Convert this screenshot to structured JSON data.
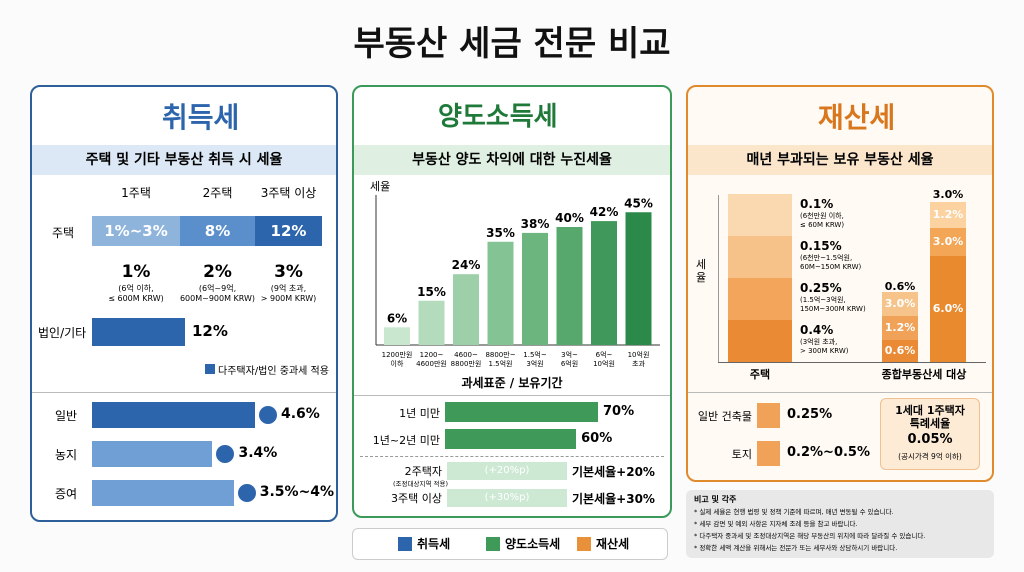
{
  "title": "부동산 세금 전문 비교",
  "acquisition": {
    "title": "취득세",
    "subtitle": "주택 및 기타 부동산 취득 시 세율",
    "color": "#2d65ad",
    "columns": [
      "1주택",
      "2주택",
      "3주택 이상"
    ],
    "housing": {
      "label": "주택",
      "cells": [
        "1%~3%",
        "8%",
        "12%"
      ],
      "colors": [
        "#8fb4dc",
        "#5b8fcc",
        "#2d65ad"
      ]
    },
    "details": [
      {
        "rate": "1%",
        "note": "(6억 이하,\n≤ 600M KRW)"
      },
      {
        "rate": "2%",
        "note": "(6억~9억,\n600M~900M KRW)"
      },
      {
        "rate": "3%",
        "note": "(9억 초과,\n> 900M KRW)"
      }
    ],
    "corporate": {
      "label": "법인/기타",
      "value": 12,
      "value_label": "12%"
    },
    "legend": "다주택자/법인 중과세 적용",
    "others": [
      {
        "label": "일반",
        "values": [
          4.6
        ],
        "value_label": "4.6%"
      },
      {
        "label": "농지",
        "values": [
          3.4
        ],
        "value_label": "3.4%"
      },
      {
        "label": "증여",
        "values": [
          3.5,
          4
        ],
        "value_label": "3.5%~4%"
      }
    ]
  },
  "capital_gains": {
    "title": "양도소득세",
    "subtitle": "부동산 양도 차익에 대한 누진세율",
    "y_label": "세율",
    "x_label": "과세표준 / 보유기간",
    "categories": [
      "1200만원\n이하",
      "1200~\n4600만원",
      "4600~\n8800만원",
      "8800만~\n1.5억원",
      "1.5억~\n3억원",
      "3억~\n6억원",
      "6억~\n10억원",
      "10억원\n초과"
    ],
    "values": [
      6,
      15,
      24,
      35,
      38,
      40,
      42,
      45
    ],
    "value_labels": [
      "6%",
      "15%",
      "24%",
      "35%",
      "38%",
      "40%",
      "42%",
      "45%"
    ],
    "colors": [
      "#c9e6cf",
      "#b4dcbc",
      "#9dd0a8",
      "#84c393",
      "#6db57f",
      "#56a86c",
      "#40995a",
      "#2b8a49"
    ],
    "holding": [
      {
        "label": "1년 미만",
        "value": 70,
        "value_label": "70%"
      },
      {
        "label": "1년~2년 미만",
        "value": 60,
        "value_label": "60%"
      }
    ],
    "holding_color": "#3f9a5a",
    "surcharge": [
      {
        "label": "2주택자",
        "note": "(조정대상지역 적용)",
        "badge": "(+20%p)",
        "rate": "기본세율+20%"
      },
      {
        "label": "3주택 이상",
        "badge": "(+30%p)",
        "rate": "기본세율+30%"
      }
    ]
  },
  "property": {
    "title": "재산세",
    "subtitle": "매년 부과되는 보유 부동산 세율",
    "y_label": "세율",
    "housing_tiers": [
      {
        "rate": "0.1%",
        "note": "(6천만원 이하,\n≤ 60M KRW)"
      },
      {
        "rate": "0.15%",
        "note": "(6천만~1.5억원,\n60M~150M KRW)"
      },
      {
        "rate": "0.25%",
        "note": "(1.5억~3억원,\n150M~300M KRW)"
      },
      {
        "rate": "0.4%",
        "note": "(3억원 초과,\n> 300M KRW)"
      }
    ],
    "tier_colors": [
      "#fbd9b0",
      "#f7c28a",
      "#f2a55b",
      "#eb8a35"
    ],
    "housing_label": "주택",
    "comprehensive_label": "종합부동산세 대상",
    "comprehensive_stacks": [
      {
        "top": "0.6%",
        "segments": [
          "3.0%",
          "1.2%",
          "0.6%"
        ],
        "colors": [
          "#f6c48a",
          "#f0a258",
          "#eb8a35"
        ]
      },
      {
        "top": "3.0%",
        "segments": [
          "1.2%",
          "3.0%",
          "6.0%"
        ],
        "colors": [
          "#fbd2a0",
          "#f3a656",
          "#e98a2f"
        ]
      }
    ],
    "others": [
      {
        "label": "일반 건축물",
        "rate": "0.25%"
      },
      {
        "label": "토지",
        "rate": "0.2%~0.5%"
      }
    ],
    "special": {
      "title": "1세대 1주택자\n특례세율",
      "rate": "0.05%",
      "note": "(공시가격 9억 이하)"
    }
  },
  "notes": {
    "title": "비고 및 각주",
    "items": [
      "* 실제 세율은 현행 법령 및 정책 기준에 따르며, 매년 변동될 수 있습니다.",
      "* 세부 감면 및 예외 사항은 지자체 조례 등을 참고 바랍니다.",
      "* 다주택자 중과세 및 조정대상지역은 해당 부동산의 위치에 따라 달라질 수 있습니다.",
      "* 정확한 세액 계산을 위해서는 전문가 또는 세무사와 상담하시기 바랍니다."
    ]
  },
  "legend": [
    {
      "name": "취득세",
      "color": "#2d65ad"
    },
    {
      "name": "양도소득세",
      "color": "#3f9a5a"
    },
    {
      "name": "재산세",
      "color": "#e8913a"
    }
  ]
}
